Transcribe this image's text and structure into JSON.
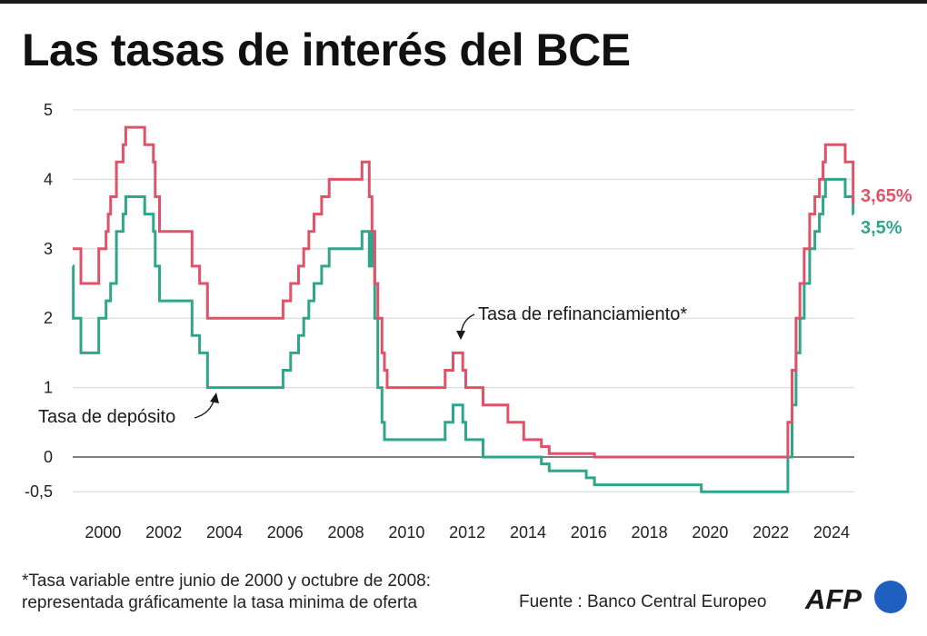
{
  "title": "Las tasas de interés del BCE",
  "footnote": {
    "line1": "*Tasa variable entre junio de 2000 y octubre de 2008:",
    "line2": "representada gráficamente la tasa minima de oferta"
  },
  "source": "Fuente : Banco Central Europeo",
  "logo_text": "AFP",
  "colors": {
    "refi": "#e05268",
    "deposit": "#2fa58b",
    "logo_circle": "#1f5fbf"
  },
  "chart_data": {
    "type": "line",
    "title": "Las tasas de interés del BCE",
    "xlabel": "",
    "ylabel": "",
    "xlim": [
      1999.0,
      2024.75
    ],
    "ylim": [
      -0.5,
      5
    ],
    "x_ticks": [
      2000,
      2002,
      2004,
      2006,
      2008,
      2010,
      2012,
      2014,
      2016,
      2018,
      2020,
      2022,
      2024
    ],
    "y_ticks": [
      {
        "value": 5,
        "label": "5"
      },
      {
        "value": 4,
        "label": "4"
      },
      {
        "value": 3,
        "label": "3"
      },
      {
        "value": 2,
        "label": "2"
      },
      {
        "value": 1,
        "label": "1"
      },
      {
        "value": 0,
        "label": "0"
      },
      {
        "value": -0.5,
        "label": "-0,5"
      }
    ],
    "grid": true,
    "series": [
      {
        "name": "Tasa de refinanciamiento*",
        "color": "#e05268",
        "end_label": "3,65%",
        "points": [
          [
            1999.0,
            3.0
          ],
          [
            1999.27,
            2.5
          ],
          [
            1999.86,
            3.0
          ],
          [
            2000.1,
            3.25
          ],
          [
            2000.17,
            3.5
          ],
          [
            2000.25,
            3.75
          ],
          [
            2000.44,
            4.25
          ],
          [
            2000.66,
            4.5
          ],
          [
            2000.75,
            4.75
          ],
          [
            2001.37,
            4.5
          ],
          [
            2001.66,
            4.25
          ],
          [
            2001.72,
            3.75
          ],
          [
            2001.86,
            3.25
          ],
          [
            2002.93,
            2.75
          ],
          [
            2003.18,
            2.5
          ],
          [
            2003.44,
            2.0
          ],
          [
            2005.93,
            2.25
          ],
          [
            2006.18,
            2.5
          ],
          [
            2006.44,
            2.75
          ],
          [
            2006.61,
            3.0
          ],
          [
            2006.78,
            3.25
          ],
          [
            2006.95,
            3.5
          ],
          [
            2007.2,
            3.75
          ],
          [
            2007.45,
            4.0
          ],
          [
            2008.53,
            4.25
          ],
          [
            2008.77,
            3.75
          ],
          [
            2008.86,
            3.25
          ],
          [
            2008.95,
            2.5
          ],
          [
            2009.05,
            2.0
          ],
          [
            2009.19,
            1.5
          ],
          [
            2009.27,
            1.25
          ],
          [
            2009.36,
            1.0
          ],
          [
            2011.27,
            1.25
          ],
          [
            2011.53,
            1.5
          ],
          [
            2011.85,
            1.25
          ],
          [
            2011.95,
            1.0
          ],
          [
            2012.52,
            0.75
          ],
          [
            2013.34,
            0.5
          ],
          [
            2013.86,
            0.25
          ],
          [
            2014.44,
            0.15
          ],
          [
            2014.7,
            0.05
          ],
          [
            2016.19,
            0.0
          ],
          [
            2022.56,
            0.5
          ],
          [
            2022.7,
            1.25
          ],
          [
            2022.83,
            2.0
          ],
          [
            2022.96,
            2.5
          ],
          [
            2023.1,
            3.0
          ],
          [
            2023.28,
            3.5
          ],
          [
            2023.45,
            3.75
          ],
          [
            2023.6,
            4.0
          ],
          [
            2023.72,
            4.25
          ],
          [
            2023.8,
            4.5
          ],
          [
            2024.45,
            4.25
          ],
          [
            2024.71,
            3.65
          ],
          [
            2024.72,
            3.65
          ]
        ]
      },
      {
        "name": "Tasa de depósito",
        "color": "#2fa58b",
        "end_label": "3,5%",
        "points": [
          [
            1999.0,
            2.75
          ],
          [
            1999.02,
            2.0
          ],
          [
            1999.27,
            1.5
          ],
          [
            1999.86,
            2.0
          ],
          [
            2000.1,
            2.25
          ],
          [
            2000.25,
            2.5
          ],
          [
            2000.44,
            3.25
          ],
          [
            2000.66,
            3.5
          ],
          [
            2000.75,
            3.75
          ],
          [
            2001.37,
            3.5
          ],
          [
            2001.66,
            3.25
          ],
          [
            2001.72,
            2.75
          ],
          [
            2001.86,
            2.25
          ],
          [
            2002.93,
            1.75
          ],
          [
            2003.18,
            1.5
          ],
          [
            2003.44,
            1.0
          ],
          [
            2005.93,
            1.25
          ],
          [
            2006.18,
            1.5
          ],
          [
            2006.44,
            1.75
          ],
          [
            2006.61,
            2.0
          ],
          [
            2006.78,
            2.25
          ],
          [
            2006.95,
            2.5
          ],
          [
            2007.2,
            2.75
          ],
          [
            2007.45,
            3.0
          ],
          [
            2008.53,
            3.25
          ],
          [
            2008.77,
            2.75
          ],
          [
            2008.86,
            3.25
          ],
          [
            2008.95,
            2.0
          ],
          [
            2009.05,
            1.0
          ],
          [
            2009.19,
            0.5
          ],
          [
            2009.27,
            0.25
          ],
          [
            2011.27,
            0.5
          ],
          [
            2011.53,
            0.75
          ],
          [
            2011.85,
            0.5
          ],
          [
            2011.95,
            0.25
          ],
          [
            2012.52,
            0.0
          ],
          [
            2014.44,
            -0.1
          ],
          [
            2014.7,
            -0.2
          ],
          [
            2015.92,
            -0.3
          ],
          [
            2016.19,
            -0.4
          ],
          [
            2019.71,
            -0.5
          ],
          [
            2022.56,
            0.0
          ],
          [
            2022.7,
            0.75
          ],
          [
            2022.83,
            1.5
          ],
          [
            2022.96,
            2.0
          ],
          [
            2023.1,
            2.5
          ],
          [
            2023.28,
            3.0
          ],
          [
            2023.45,
            3.25
          ],
          [
            2023.6,
            3.5
          ],
          [
            2023.72,
            3.75
          ],
          [
            2023.8,
            4.0
          ],
          [
            2024.45,
            3.75
          ],
          [
            2024.71,
            3.5
          ],
          [
            2024.72,
            3.5
          ]
        ]
      }
    ],
    "annotations": [
      {
        "text": "Tasa de refinanciamiento*",
        "series": 0
      },
      {
        "text": "Tasa de depósito",
        "series": 1
      }
    ]
  }
}
